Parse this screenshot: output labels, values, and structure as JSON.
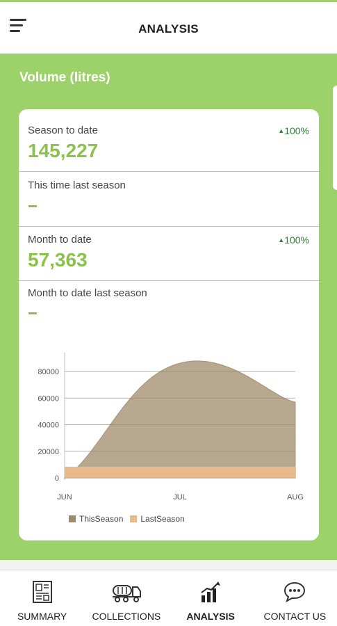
{
  "header": {
    "title": "ANALYSIS",
    "menu_icon": "hamburger-menu-icon"
  },
  "section": {
    "title": "Volume (litres)"
  },
  "stats": {
    "season_to_date": {
      "label": "Season to date",
      "value": "145,227",
      "change": "100%"
    },
    "this_time_last_season": {
      "label": "This time last season"
    },
    "month_to_date": {
      "label": "Month to date",
      "value": "57,363",
      "change": "100%"
    },
    "month_to_date_last_season": {
      "label": "Month to date last season"
    }
  },
  "chart_data": {
    "type": "area",
    "categories": [
      "JUN",
      "JUL",
      "AUG"
    ],
    "y_ticks": [
      "0",
      "20000",
      "40000",
      "60000",
      "80000"
    ],
    "ylim": [
      0,
      90000
    ],
    "series": [
      {
        "name": "ThisSeason",
        "color": "#b5a48a",
        "values": [
          0,
          88000,
          57000
        ]
      },
      {
        "name": "LastSeason",
        "color": "#e8b98a",
        "values": [
          0,
          0,
          0
        ]
      }
    ]
  },
  "nav": {
    "items": [
      {
        "label": "SUMMARY",
        "icon": "summary-icon",
        "active": false
      },
      {
        "label": "COLLECTIONS",
        "icon": "tanker-truck-icon",
        "active": false
      },
      {
        "label": "ANALYSIS",
        "icon": "bar-chart-icon",
        "active": true
      },
      {
        "label": "CONTACT US",
        "icon": "chat-bubble-icon",
        "active": false
      }
    ]
  }
}
